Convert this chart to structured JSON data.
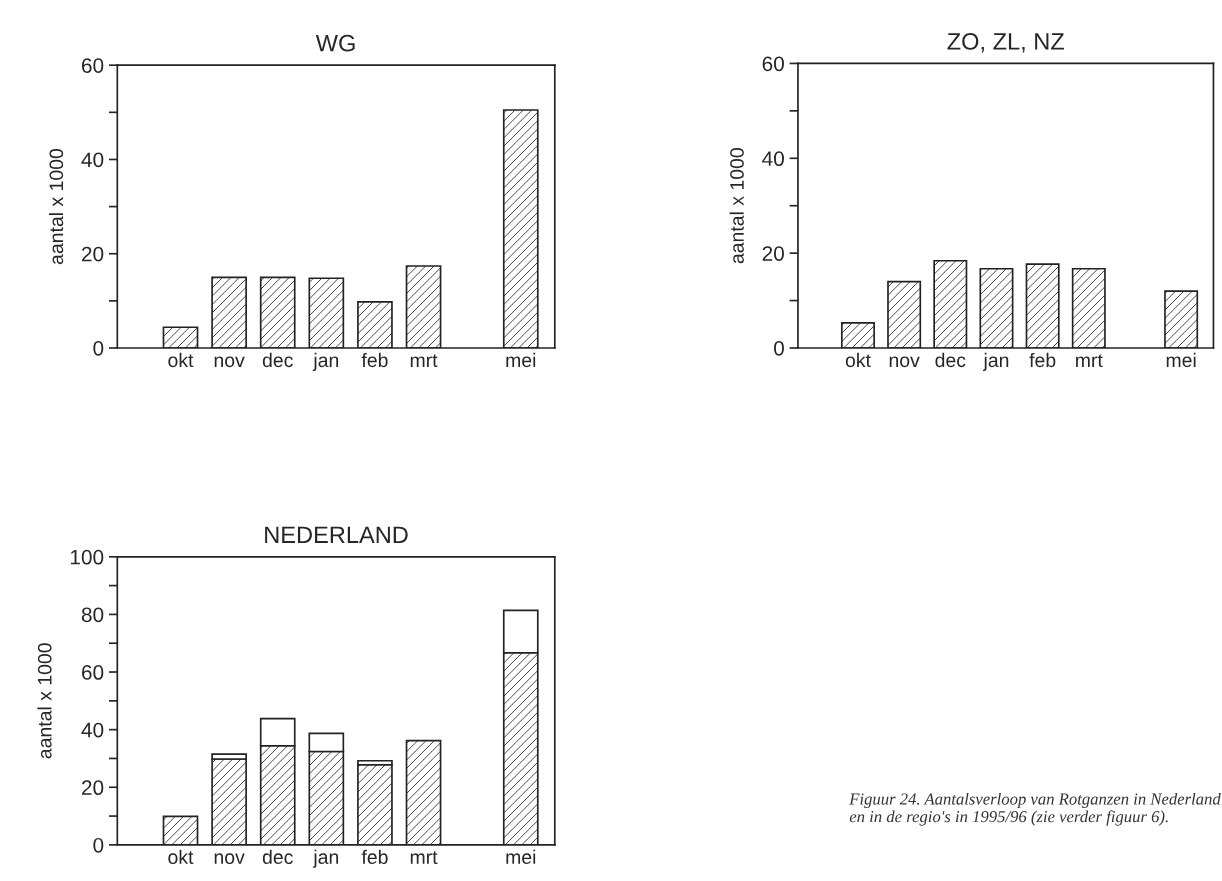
{
  "chart_data": [
    {
      "type": "bar",
      "title": "WG",
      "ylabel": "aantal x 1000",
      "categories": [
        "okt",
        "nov",
        "dec",
        "jan",
        "feb",
        "mrt",
        null,
        "mei"
      ],
      "series": [
        {
          "color": "#222222",
          "values": [
            4.4,
            15.0,
            15.0,
            14.8,
            9.8,
            17.4,
            null,
            50.5
          ]
        }
      ],
      "ylim": [
        0,
        60
      ],
      "yticks": [
        0,
        {
          "value": 10,
          "label": null
        },
        20,
        {
          "value": 30,
          "label": null
        },
        40,
        {
          "value": 50,
          "label": null
        },
        60
      ],
      "grid": false,
      "legend": false
    },
    {
      "type": "bar",
      "title": "ZO, ZL, NZ",
      "ylabel": "aantal x 1000",
      "categories": [
        "okt",
        "nov",
        "dec",
        "jan",
        "feb",
        "mrt",
        null,
        "mei"
      ],
      "series": [
        {
          "color": "#222222",
          "values": [
            5.3,
            14.0,
            18.4,
            16.7,
            17.7,
            16.7,
            null,
            12.0
          ]
        }
      ],
      "ylim": [
        0,
        60
      ],
      "yticks": [
        0,
        {
          "value": 10,
          "label": null
        },
        20,
        {
          "value": 30,
          "label": null
        },
        40,
        {
          "value": 50,
          "label": null
        },
        60
      ],
      "grid": false,
      "legend": false
    },
    {
      "type": "bar",
      "title": "NEDERLAND",
      "ylabel": "aantal x 1000",
      "categories": [
        "okt",
        "nov",
        "dec",
        "jan",
        "feb",
        "mrt",
        null,
        "mei"
      ],
      "stacked": true,
      "series": [
        {
          "color": "#222222",
          "values": [
            9.9,
            29.8,
            34.4,
            32.4,
            27.8,
            36.2,
            null,
            66.7
          ]
        },
        {
          "color": "#ffffff",
          "values": [
            null,
            1.7,
            9.4,
            6.3,
            1.4,
            null,
            null,
            14.7
          ]
        }
      ],
      "ylim": [
        0,
        100
      ],
      "yticks": [
        0,
        {
          "value": 10,
          "label": null
        },
        20,
        {
          "value": 30,
          "label": null
        },
        40,
        {
          "value": 50,
          "label": null
        },
        60,
        {
          "value": 70,
          "label": null
        },
        80,
        {
          "value": 90,
          "label": null
        },
        100
      ],
      "grid": false,
      "legend": false,
      "annotations": [
        "Figuur 24. Aantalsverloop van Rotganzen in Nederland en in de regio's in 1995/96 (zie verder figuur 6)."
      ]
    }
  ]
}
